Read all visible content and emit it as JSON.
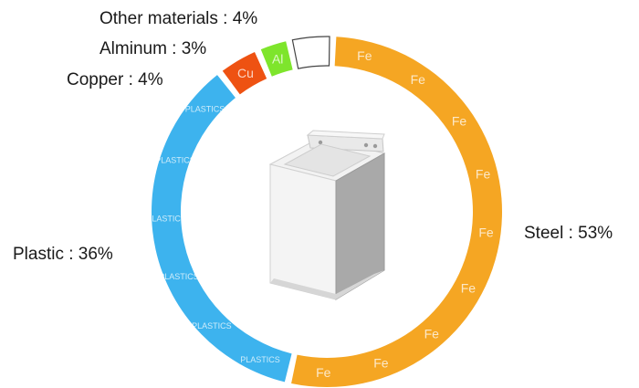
{
  "chart_data": {
    "type": "pie",
    "style": "donut",
    "legend": "none",
    "slices": [
      {
        "name": "Steel",
        "value": 53,
        "color": "#F5A623",
        "element": "Fe"
      },
      {
        "name": "Plastic",
        "value": 36,
        "color": "#3DB3EE",
        "element": "PLASTICS"
      },
      {
        "name": "Copper",
        "value": 4,
        "color": "#EE5212",
        "element": "Cu"
      },
      {
        "name": "Alminum",
        "value": 3,
        "color": "#7EE52C",
        "element": "Al"
      },
      {
        "name": "Other materials",
        "value": 4,
        "color": "#ffffff",
        "element": ""
      }
    ],
    "labels": {
      "steel": "Steel : 53%",
      "plastic": "Plastic : 36%",
      "copper": "Copper : 4%",
      "aluminum": "Alminum : 3%",
      "other": "Other materials : 4%"
    },
    "center_icon": "washing-machine-icon"
  }
}
